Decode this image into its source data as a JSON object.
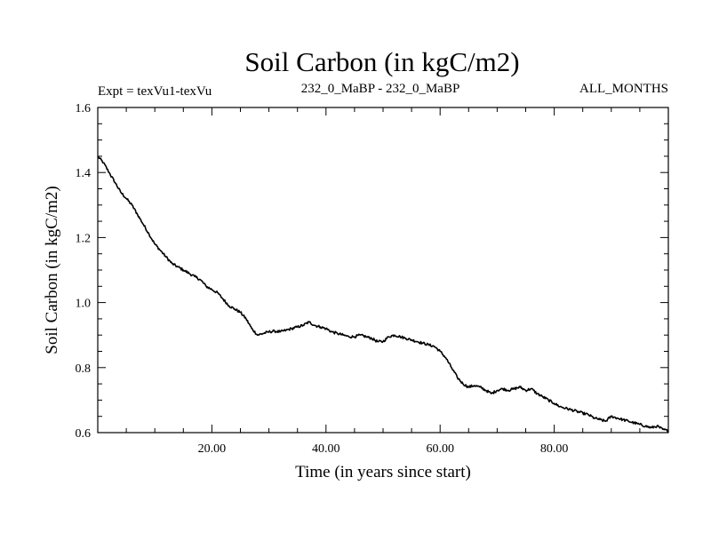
{
  "chart_data": {
    "type": "line",
    "title": "Soil Carbon (in kgC/m2)",
    "subtitle_left": "Expt = texVu1-texVu",
    "subtitle_center": "232_0_MaBP - 232_0_MaBP",
    "subtitle_right": "ALL_MONTHS",
    "xlabel": "Time (in years since start)",
    "ylabel": "Soil Carbon (in kgC/m2)",
    "xlim": [
      0,
      100
    ],
    "ylim": [
      0.6,
      1.6
    ],
    "x_ticks": [
      {
        "value": 20,
        "label": "20.00"
      },
      {
        "value": 40,
        "label": "40.00"
      },
      {
        "value": 60,
        "label": "60.00"
      },
      {
        "value": 80,
        "label": "80.00"
      }
    ],
    "y_ticks": [
      {
        "value": 0.6,
        "label": "0.6"
      },
      {
        "value": 0.8,
        "label": "0.8"
      },
      {
        "value": 1.0,
        "label": "1.0"
      },
      {
        "value": 1.2,
        "label": "1.2"
      },
      {
        "value": 1.4,
        "label": "1.4"
      },
      {
        "value": 1.6,
        "label": "1.6"
      }
    ],
    "series": [
      {
        "name": "Soil Carbon",
        "color": "#000000",
        "points": [
          [
            0,
            1.45
          ],
          [
            1,
            1.43
          ],
          [
            2,
            1.4
          ],
          [
            3,
            1.37
          ],
          [
            4,
            1.34
          ],
          [
            5,
            1.32
          ],
          [
            6,
            1.3
          ],
          [
            7,
            1.27
          ],
          [
            8,
            1.24
          ],
          [
            9,
            1.21
          ],
          [
            10,
            1.18
          ],
          [
            11,
            1.16
          ],
          [
            12,
            1.14
          ],
          [
            13,
            1.12
          ],
          [
            14,
            1.11
          ],
          [
            15,
            1.1
          ],
          [
            16,
            1.09
          ],
          [
            17,
            1.08
          ],
          [
            18,
            1.07
          ],
          [
            19,
            1.05
          ],
          [
            20,
            1.04
          ],
          [
            21,
            1.03
          ],
          [
            22,
            1.01
          ],
          [
            23,
            0.99
          ],
          [
            24,
            0.98
          ],
          [
            25,
            0.97
          ],
          [
            26,
            0.95
          ],
          [
            27,
            0.92
          ],
          [
            28,
            0.9
          ],
          [
            29,
            0.905
          ],
          [
            30,
            0.91
          ],
          [
            31,
            0.912
          ],
          [
            32,
            0.91
          ],
          [
            33,
            0.915
          ],
          [
            34,
            0.92
          ],
          [
            35,
            0.925
          ],
          [
            36,
            0.93
          ],
          [
            37,
            0.94
          ],
          [
            38,
            0.93
          ],
          [
            39,
            0.925
          ],
          [
            40,
            0.92
          ],
          [
            41,
            0.91
          ],
          [
            42,
            0.905
          ],
          [
            43,
            0.9
          ],
          [
            44,
            0.895
          ],
          [
            45,
            0.895
          ],
          [
            46,
            0.9
          ],
          [
            47,
            0.895
          ],
          [
            48,
            0.89
          ],
          [
            49,
            0.88
          ],
          [
            50,
            0.88
          ],
          [
            51,
            0.895
          ],
          [
            52,
            0.9
          ],
          [
            53,
            0.895
          ],
          [
            54,
            0.89
          ],
          [
            55,
            0.885
          ],
          [
            56,
            0.88
          ],
          [
            57,
            0.875
          ],
          [
            58,
            0.87
          ],
          [
            59,
            0.865
          ],
          [
            60,
            0.85
          ],
          [
            61,
            0.83
          ],
          [
            62,
            0.8
          ],
          [
            63,
            0.77
          ],
          [
            64,
            0.75
          ],
          [
            65,
            0.74
          ],
          [
            66,
            0.745
          ],
          [
            67,
            0.74
          ],
          [
            68,
            0.73
          ],
          [
            69,
            0.72
          ],
          [
            70,
            0.73
          ],
          [
            71,
            0.735
          ],
          [
            72,
            0.73
          ],
          [
            73,
            0.735
          ],
          [
            74,
            0.74
          ],
          [
            75,
            0.73
          ],
          [
            76,
            0.735
          ],
          [
            77,
            0.72
          ],
          [
            78,
            0.71
          ],
          [
            79,
            0.7
          ],
          [
            80,
            0.69
          ],
          [
            81,
            0.68
          ],
          [
            82,
            0.675
          ],
          [
            83,
            0.67
          ],
          [
            84,
            0.665
          ],
          [
            85,
            0.66
          ],
          [
            86,
            0.655
          ],
          [
            87,
            0.645
          ],
          [
            88,
            0.64
          ],
          [
            89,
            0.635
          ],
          [
            90,
            0.65
          ],
          [
            91,
            0.645
          ],
          [
            92,
            0.64
          ],
          [
            93,
            0.635
          ],
          [
            94,
            0.63
          ],
          [
            95,
            0.625
          ],
          [
            96,
            0.62
          ],
          [
            97,
            0.615
          ],
          [
            98,
            0.62
          ],
          [
            99,
            0.61
          ],
          [
            100,
            0.605
          ]
        ]
      }
    ]
  }
}
